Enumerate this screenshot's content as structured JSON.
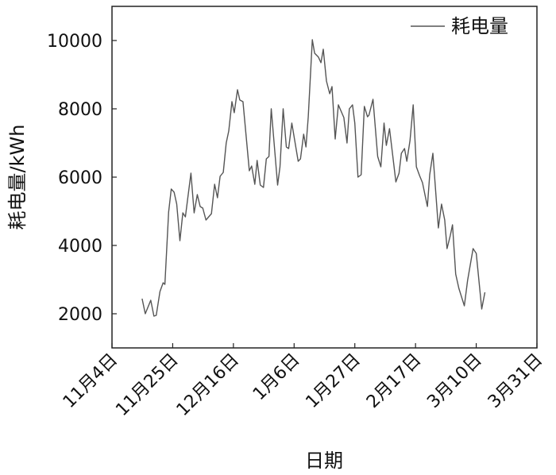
{
  "chart_data": {
    "type": "line",
    "title": "",
    "xlabel": "日期",
    "ylabel": "耗电量/kWh",
    "x_unit": "days since 11月4日",
    "xlim": [
      0,
      147
    ],
    "ylim": [
      1000,
      11000
    ],
    "yticks": [
      2000,
      4000,
      6000,
      8000,
      10000
    ],
    "ytick_labels": [
      "2000",
      "4000",
      "6000",
      "8000",
      "10000"
    ],
    "xticks": [
      0,
      21,
      42,
      63,
      84,
      105,
      126,
      147
    ],
    "xtick_labels": [
      "11月4日",
      "11月25日",
      "12月16日",
      "1月6日",
      "1月27日",
      "2月17日",
      "3月10日",
      "3月31日"
    ],
    "grid": false,
    "legend_position": "top-right",
    "color": "#555555",
    "series": [
      {
        "name": "耗电量",
        "x": [
          10.4,
          11.5,
          13.4,
          14.5,
          15.3,
          16.6,
          17.7,
          18.3,
          19.6,
          20.5,
          21.5,
          22.4,
          23.5,
          24.5,
          25.4,
          27.3,
          28.4,
          29.5,
          30.5,
          31.4,
          32.5,
          34.4,
          35.5,
          36.5,
          37.4,
          38.5,
          39.5,
          40.4,
          41.5,
          42.3,
          43.4,
          44.2,
          45.3,
          47.5,
          48.3,
          49.4,
          50.2,
          51.3,
          52.4,
          53.4,
          54.3,
          55.1,
          57.3,
          58.1,
          59.2,
          60.3,
          61.1,
          62.2,
          64.4,
          65.2,
          66.3,
          67.1,
          67.9,
          69.3,
          70.1,
          71.4,
          72.3,
          73.1,
          74.2,
          75.3,
          76.1,
          77.2,
          78.3,
          80.2,
          81.3,
          82.1,
          83.2,
          84.0,
          85.1,
          86.2,
          87.3,
          88.4,
          88.9,
          90.3,
          91.9,
          93.0,
          94.1,
          94.9,
          96.0,
          98.2,
          99.3,
          100.1,
          101.2,
          102.0,
          103.1,
          104.2,
          105.3,
          106.4,
          107.4,
          109.1,
          109.9,
          111.0,
          112.9,
          114.0,
          115.1,
          115.9,
          117.0,
          117.8,
          118.9,
          120.0,
          121.9,
          123.0,
          124.9,
          126.0,
          127.9,
          129.0
        ],
        "values": [
          2442,
          2000,
          2396,
          1931,
          1954,
          2652,
          2907,
          2861,
          4977,
          5652,
          5559,
          5210,
          4140,
          4954,
          4838,
          6117,
          4954,
          5489,
          5140,
          5093,
          4745,
          4931,
          5791,
          5396,
          6024,
          6140,
          7001,
          7350,
          8210,
          7885,
          8559,
          8257,
          8210,
          6187,
          6326,
          5791,
          6489,
          5768,
          5698,
          6536,
          6605,
          8001,
          5768,
          6303,
          8001,
          6884,
          6838,
          7582,
          6466,
          6536,
          7257,
          6884,
          7768,
          10024,
          9629,
          9513,
          9350,
          9745,
          8815,
          8443,
          8652,
          7117,
          8117,
          7745,
          7001,
          8001,
          8117,
          7582,
          6001,
          6070,
          8071,
          7768,
          7815,
          8280,
          6605,
          6303,
          7582,
          6931,
          7420,
          5861,
          6117,
          6698,
          6838,
          6466,
          7071,
          8117,
          6303,
          6047,
          5838,
          5140,
          6070,
          6698,
          4512,
          5210,
          4745,
          3908,
          4280,
          4605,
          3163,
          2745,
          2233,
          2977,
          3908,
          3768,
          2140,
          2628
        ]
      }
    ]
  }
}
